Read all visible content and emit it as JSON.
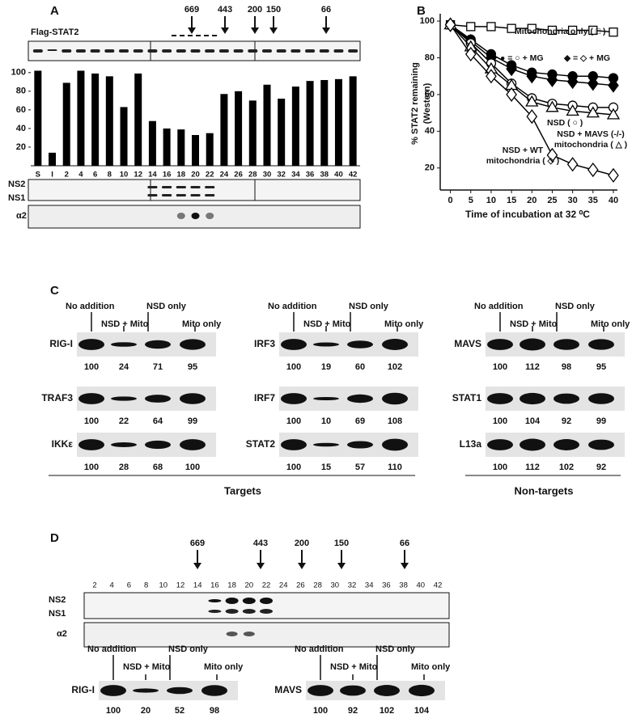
{
  "panel_labels": [
    "A",
    "B",
    "C",
    "D"
  ],
  "chart_data": [
    {
      "type": "bar",
      "categories": [
        "S",
        "I",
        "2",
        "4",
        "6",
        "8",
        "10",
        "12",
        "14",
        "16",
        "18",
        "20",
        "22",
        "24",
        "26",
        "28",
        "30",
        "32",
        "34",
        "36",
        "38",
        "40",
        "42"
      ],
      "values": [
        102,
        14,
        89,
        102,
        99,
        96,
        63,
        99,
        48,
        40,
        39,
        33,
        35,
        77,
        80,
        70,
        87,
        72,
        85,
        91,
        92,
        93,
        96
      ],
      "color": "#000000",
      "ylim": [
        0,
        105
      ],
      "yticks": [
        20,
        40,
        60,
        80,
        100
      ]
    },
    {
      "type": "line",
      "x": [
        0,
        5,
        10,
        15,
        20,
        25,
        30,
        35,
        40
      ],
      "xlim": [
        -2.5,
        41
      ],
      "xticks": [
        0,
        5,
        10,
        15,
        20,
        25,
        30,
        35,
        40
      ],
      "ylim": [
        8,
        104
      ],
      "yticks": [
        20,
        40,
        60,
        80,
        100
      ],
      "xlabel": "Time of incubation at 32 ⁰C",
      "ylabel": [
        "% STAT2 remaining",
        "(Western)"
      ],
      "series": [
        {
          "name": "Mitochondria only ( □ )",
          "color": "#000000",
          "marker": "square",
          "filled": false,
          "values": [
            98,
            97,
            97,
            96,
            96,
            95,
            95,
            95,
            94
          ]
        },
        {
          "name": "● = ○ + MG",
          "color": "#000000",
          "marker": "circle",
          "filled": true,
          "values": [
            98,
            90,
            82,
            76,
            72,
            71,
            70,
            70,
            69
          ]
        },
        {
          "name": "◆ = ◇ + MG",
          "color": "#000000",
          "marker": "diamond",
          "filled": true,
          "values": [
            98,
            89,
            80,
            74,
            70,
            68,
            67,
            66,
            65
          ]
        },
        {
          "name": "NSD ( ○ )",
          "color": "#000000",
          "marker": "circle",
          "filled": false,
          "values": [
            98,
            88,
            77,
            66,
            58,
            55,
            54,
            53,
            53
          ]
        },
        {
          "name": "NSD + MAVS (-/-) mitochondria ( △ )",
          "color": "#000000",
          "marker": "triangle",
          "filled": false,
          "values": [
            98,
            86,
            74,
            65,
            56,
            53,
            51,
            50,
            49
          ]
        },
        {
          "name": "NSD + WT mitochondria ( ◇ )",
          "color": "#000000",
          "marker": "diamond",
          "filled": false,
          "values": [
            98,
            82,
            70,
            60,
            48,
            27,
            22,
            19,
            16
          ]
        }
      ]
    }
  ],
  "panel_a": {
    "blot_label": "Flag-STAT2",
    "markers": [
      "669",
      "443",
      "200",
      "150",
      "66"
    ],
    "fraction_blot_labels": [
      "NS2",
      "NS1"
    ],
    "alpha_blot_label": "α2"
  },
  "panel_c": {
    "groups": [
      {
        "headers": [
          "No addition",
          "NSD + Mito",
          "NSD only",
          "Mito only"
        ],
        "rows": [
          {
            "label": "RIG-I",
            "values": [
              100,
              24,
              71,
              95
            ]
          },
          {
            "label": "TRAF3",
            "values": [
              100,
              22,
              64,
              99
            ]
          },
          {
            "label": "IKKε",
            "values": [
              100,
              28,
              68,
              100
            ]
          }
        ]
      },
      {
        "headers": [
          "No addition",
          "NSD + Mito",
          "NSD only",
          "Mito only"
        ],
        "rows": [
          {
            "label": "IRF3",
            "values": [
              100,
              19,
              60,
              102
            ]
          },
          {
            "label": "IRF7",
            "values": [
              100,
              10,
              69,
              108
            ]
          },
          {
            "label": "STAT2",
            "values": [
              100,
              15,
              57,
              110
            ]
          }
        ]
      },
      {
        "headers": [
          "No addition",
          "NSD + Mito",
          "NSD only",
          "Mito only"
        ],
        "rows": [
          {
            "label": "MAVS",
            "values": [
              100,
              112,
              98,
              95
            ]
          },
          {
            "label": "STAT1",
            "values": [
              100,
              104,
              92,
              99
            ]
          },
          {
            "label": "L13a",
            "values": [
              100,
              112,
              102,
              92
            ]
          }
        ]
      }
    ],
    "footers": [
      "Targets",
      "Non-targets"
    ]
  },
  "panel_d": {
    "markers": [
      "669",
      "443",
      "200",
      "150",
      "66"
    ],
    "lanes": [
      2,
      4,
      6,
      8,
      10,
      12,
      14,
      16,
      18,
      20,
      22,
      24,
      26,
      28,
      30,
      32,
      34,
      36,
      38,
      40,
      42
    ],
    "blot_labels": [
      "NS2",
      "NS1",
      "α2"
    ],
    "groups": [
      {
        "headers": [
          "No addition",
          "NSD + Mito",
          "NSD only",
          "Mito only"
        ],
        "rows": [
          {
            "label": "RIG-I",
            "values": [
              100,
              20,
              52,
              98
            ]
          }
        ]
      },
      {
        "headers": [
          "No addition",
          "NSD + Mito",
          "NSD only",
          "Mito only"
        ],
        "rows": [
          {
            "label": "MAVS",
            "values": [
              100,
              92,
              102,
              104
            ]
          }
        ]
      }
    ]
  }
}
